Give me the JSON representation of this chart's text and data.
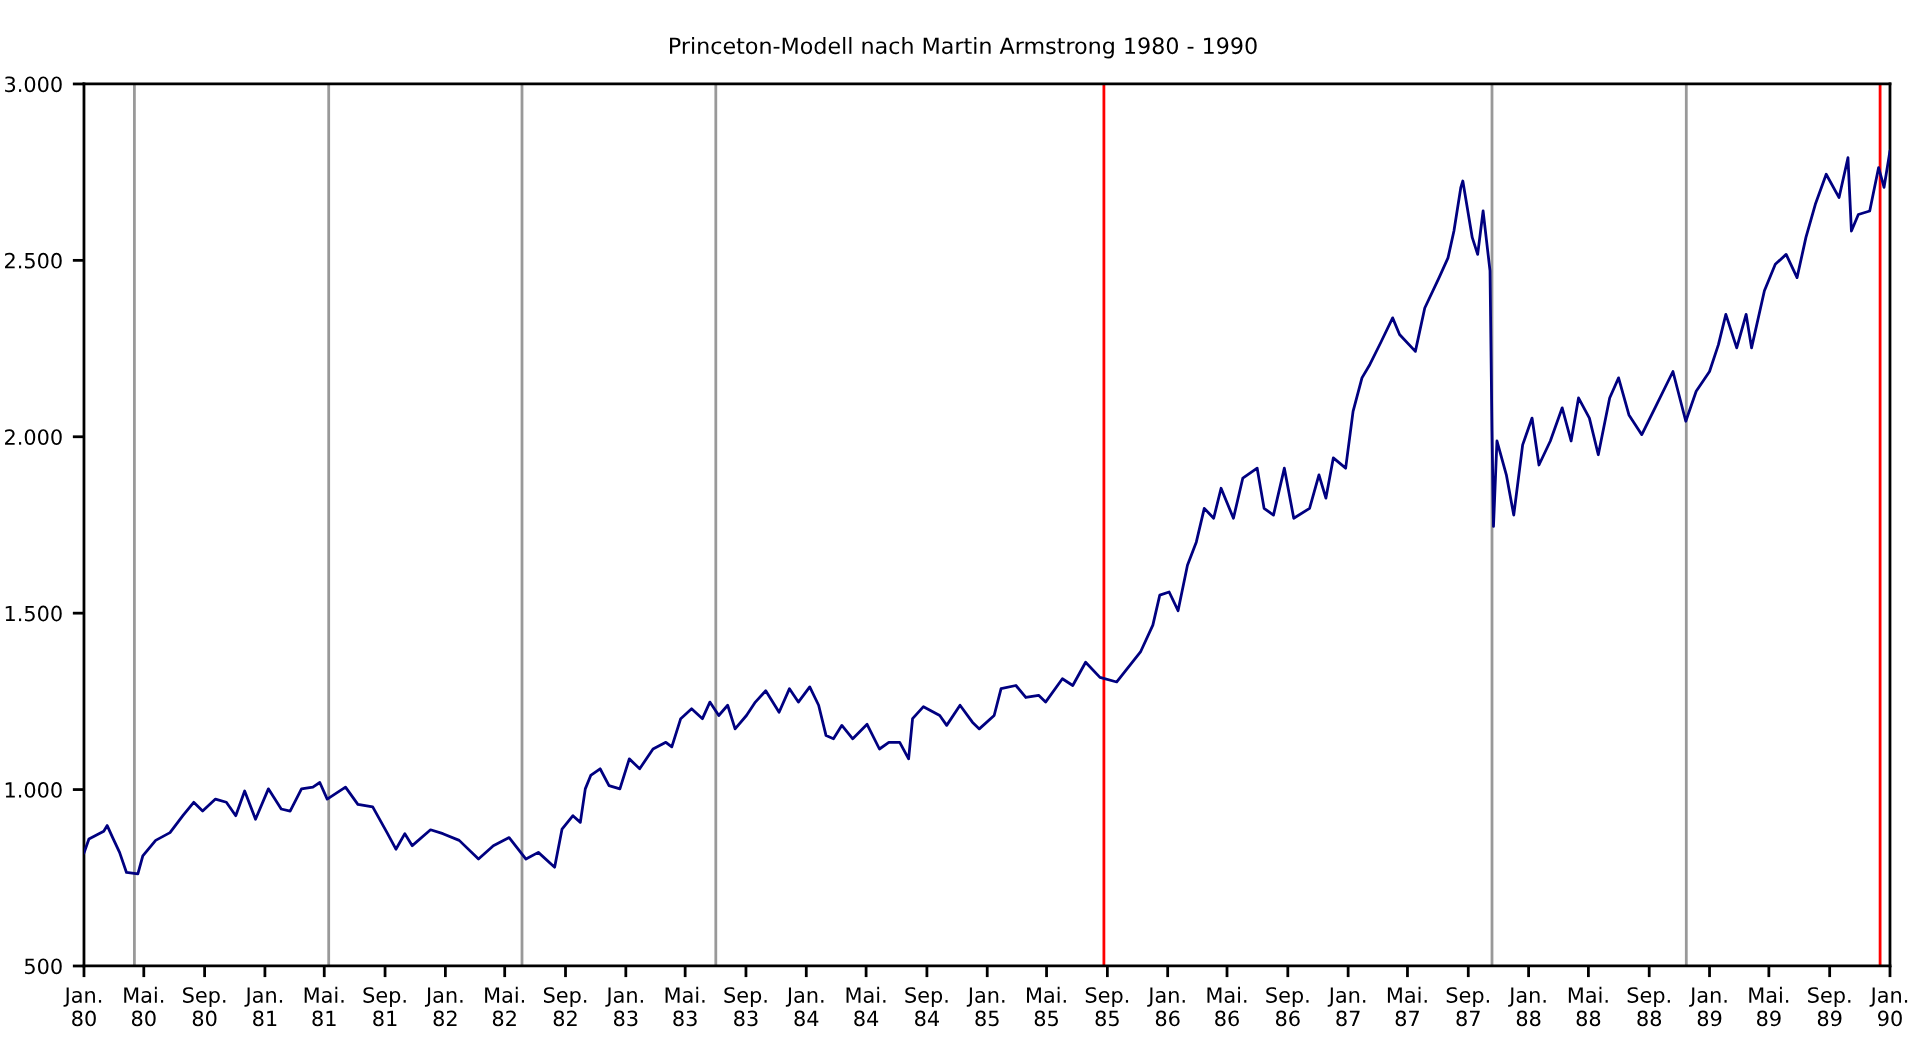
{
  "chart_data": {
    "type": "line",
    "title": "Princeton-Modell nach Martin Armstrong 1980 - 1990",
    "series": [
      {
        "color": "#000080",
        "x": [
          "1980-01-01",
          "1980-01-11",
          "1980-02-10",
          "1980-02-17",
          "1980-02-28",
          "1980-03-13",
          "1980-03-27",
          "1980-04-19",
          "1980-04-29",
          "1980-05-25",
          "1980-06-23",
          "1980-07-19",
          "1980-08-10",
          "1980-08-28",
          "1980-09-23",
          "1980-10-15",
          "1980-11-03",
          "1980-11-21",
          "1980-12-13",
          "1981-01-08",
          "1981-02-03",
          "1981-02-21",
          "1981-03-16",
          "1981-04-08",
          "1981-04-22",
          "1981-05-07",
          "1981-06-13",
          "1981-07-08",
          "1981-08-07",
          "1981-09-05",
          "1981-09-23",
          "1981-10-11",
          "1981-10-26",
          "1981-12-02",
          "1981-12-27",
          "1982-01-29",
          "1982-03-09",
          "1982-04-08",
          "1982-05-10",
          "1982-06-13",
          "1982-07-08",
          "1982-08-10",
          "1982-08-25",
          "1982-09-16",
          "1982-10-01",
          "1982-10-11",
          "1982-10-22",
          "1982-11-10",
          "1982-11-28",
          "1982-12-20",
          "1983-01-08",
          "1983-01-29",
          "1983-02-25",
          "1983-03-23",
          "1983-04-04",
          "1983-04-22",
          "1983-05-14",
          "1983-06-05",
          "1983-06-20",
          "1983-07-08",
          "1983-07-26",
          "1983-08-10",
          "1983-09-02",
          "1983-09-20",
          "1983-10-11",
          "1983-11-07",
          "1983-11-28",
          "1983-12-16",
          "1984-01-08",
          "1984-01-26",
          "1984-02-10",
          "1984-02-25",
          "1984-03-13",
          "1984-04-04",
          "1984-05-03",
          "1984-05-28",
          "1984-06-16",
          "1984-07-08",
          "1984-07-26",
          "1984-08-03",
          "1984-08-25",
          "1984-09-27",
          "1984-10-11",
          "1984-11-07",
          "1984-12-02",
          "1984-12-16",
          "1985-01-15",
          "1985-01-29",
          "1985-02-28",
          "1985-03-20",
          "1985-04-15",
          "1985-04-29",
          "1985-06-02",
          "1985-06-23",
          "1985-07-19",
          "1985-08-17",
          "1985-09-20",
          "1985-10-08",
          "1985-11-07",
          "1985-12-02",
          "1985-12-16",
          "1986-01-04",
          "1986-01-22",
          "1986-02-10",
          "1986-02-28",
          "1986-03-16",
          "1986-04-04",
          "1986-04-19",
          "1986-05-14",
          "1986-06-02",
          "1986-07-01",
          "1986-07-15",
          "1986-08-03",
          "1986-08-25",
          "1986-09-13",
          "1986-10-15",
          "1986-11-03",
          "1986-11-17",
          "1986-12-02",
          "1986-12-27",
          "1987-01-11",
          "1987-01-29",
          "1987-02-14",
          "1987-03-09",
          "1987-04-01",
          "1987-04-15",
          "1987-05-17",
          "1987-06-05",
          "1987-07-04",
          "1987-07-22",
          "1987-08-03",
          "1987-08-17",
          "1987-08-21",
          "1987-09-09",
          "1987-09-20",
          "1987-10-01",
          "1987-10-15",
          "1987-10-19",
          "1987-10-22",
          "1987-10-29",
          "1987-11-17",
          "1987-12-02",
          "1987-12-20",
          "1988-01-08",
          "1988-01-22",
          "1988-02-14",
          "1988-03-09",
          "1988-03-27",
          "1988-04-11",
          "1988-05-03",
          "1988-05-21",
          "1988-06-13",
          "1988-07-01",
          "1988-07-22",
          "1988-08-17",
          "1988-09-16",
          "1988-10-19",
          "1988-11-14",
          "1988-12-05",
          "1989-01-01",
          "1989-01-19",
          "1989-02-03",
          "1989-02-25",
          "1989-03-16",
          "1989-03-27",
          "1989-04-22",
          "1989-05-14",
          "1989-06-05",
          "1989-06-27",
          "1989-07-15",
          "1989-08-03",
          "1989-08-25",
          "1989-09-20",
          "1989-10-08",
          "1989-10-15",
          "1989-10-29",
          "1989-11-21",
          "1989-12-09",
          "1989-12-20",
          "1990-01-01"
        ],
        "values": [
          820,
          860,
          882,
          898,
          864,
          822,
          765,
          761,
          812,
          856,
          878,
          926,
          964,
          939,
          973,
          964,
          926,
          996,
          916,
          1002,
          945,
          939,
          1002,
          1007,
          1020,
          973,
          1007,
          958,
          951,
          878,
          831,
          875,
          841,
          886,
          875,
          856,
          803,
          841,
          864,
          803,
          822,
          780,
          888,
          926,
          907,
          1002,
          1040,
          1059,
          1011,
          1002,
          1087,
          1059,
          1115,
          1134,
          1121,
          1201,
          1229,
          1201,
          1248,
          1210,
          1239,
          1172,
          1210,
          1248,
          1280,
          1219,
          1286,
          1248,
          1291,
          1239,
          1153,
          1144,
          1182,
          1144,
          1185,
          1115,
          1134,
          1134,
          1087,
          1201,
          1235,
          1210,
          1182,
          1239,
          1191,
          1172,
          1210,
          1286,
          1295,
          1261,
          1267,
          1248,
          1314,
          1295,
          1361,
          1318,
          1305,
          1337,
          1390,
          1466,
          1551,
          1560,
          1507,
          1636,
          1702,
          1797,
          1769,
          1854,
          1769,
          1883,
          1911,
          1797,
          1778,
          1911,
          1769,
          1797,
          1892,
          1826,
          1940,
          1911,
          2072,
          2167,
          2205,
          2270,
          2337,
          2290,
          2242,
          2365,
          2451,
          2507,
          2583,
          2707,
          2725,
          2565,
          2517,
          2640,
          2470,
          2016,
          1746,
          1988,
          1892,
          1778,
          1977,
          2053,
          1920,
          1988,
          2082,
          1988,
          2110,
          2053,
          1949,
          2110,
          2167,
          2062,
          2006,
          2091,
          2185,
          2044,
          2129,
          2185,
          2261,
          2347,
          2252,
          2347,
          2252,
          2414,
          2489,
          2517,
          2451,
          2565,
          2659,
          2744,
          2678,
          2791,
          2583,
          2630,
          2640,
          2763,
          2707,
          2810
        ]
      }
    ],
    "xlim": [
      "1980-01-01",
      "1990-01-01"
    ],
    "xticks": [
      {
        "value": "1980-01",
        "label": "Jan.\n80"
      },
      {
        "value": "1980-05",
        "label": "Mai.\n80"
      },
      {
        "value": "1980-09",
        "label": "Sep.\n80"
      },
      {
        "value": "1981-01",
        "label": "Jan.\n81"
      },
      {
        "value": "1981-05",
        "label": "Mai.\n81"
      },
      {
        "value": "1981-09",
        "label": "Sep.\n81"
      },
      {
        "value": "1982-01",
        "label": "Jan.\n82"
      },
      {
        "value": "1982-05",
        "label": "Mai.\n82"
      },
      {
        "value": "1982-09",
        "label": "Sep.\n82"
      },
      {
        "value": "1983-01",
        "label": "Jan.\n83"
      },
      {
        "value": "1983-05",
        "label": "Mai.\n83"
      },
      {
        "value": "1983-09",
        "label": "Sep.\n83"
      },
      {
        "value": "1984-01",
        "label": "Jan.\n84"
      },
      {
        "value": "1984-05",
        "label": "Mai.\n84"
      },
      {
        "value": "1984-09",
        "label": "Sep.\n84"
      },
      {
        "value": "1985-01",
        "label": "Jan.\n85"
      },
      {
        "value": "1985-05",
        "label": "Mai.\n85"
      },
      {
        "value": "1985-09",
        "label": "Sep.\n85"
      },
      {
        "value": "1986-01",
        "label": "Jan.\n86"
      },
      {
        "value": "1986-05",
        "label": "Mai.\n86"
      },
      {
        "value": "1986-09",
        "label": "Sep.\n86"
      },
      {
        "value": "1987-01",
        "label": "Jan.\n87"
      },
      {
        "value": "1987-05",
        "label": "Mai.\n87"
      },
      {
        "value": "1987-09",
        "label": "Sep.\n87"
      },
      {
        "value": "1988-01",
        "label": "Jan.\n88"
      },
      {
        "value": "1988-05",
        "label": "Mai.\n88"
      },
      {
        "value": "1988-09",
        "label": "Sep.\n88"
      },
      {
        "value": "1989-01",
        "label": "Jan.\n89"
      },
      {
        "value": "1989-05",
        "label": "Mai.\n89"
      },
      {
        "value": "1989-09",
        "label": "Sep.\n89"
      },
      {
        "value": "1990-01",
        "label": "Jan.\n90"
      }
    ],
    "ylim": [
      500,
      3000
    ],
    "yticks": [
      500,
      {
        "value": 1000,
        "label": "1.000"
      },
      {
        "value": 1500,
        "label": "1.500"
      },
      {
        "value": 2000,
        "label": "2.000"
      },
      {
        "value": 2500,
        "label": "2.500"
      },
      {
        "value": 3000,
        "label": "3.000"
      }
    ],
    "ref_lines": [
      {
        "axis": "x",
        "value": "1980-04-12",
        "color": "#999999"
      },
      {
        "axis": "x",
        "value": "1981-05-10",
        "color": "#999999"
      },
      {
        "axis": "x",
        "value": "1982-06-05",
        "color": "#999999"
      },
      {
        "axis": "x",
        "value": "1983-07-02",
        "color": "#999999"
      },
      {
        "axis": "x",
        "value": "1985-08-25",
        "color": "#ff0000"
      },
      {
        "axis": "x",
        "value": "1987-10-19",
        "color": "#999999"
      },
      {
        "axis": "x",
        "value": "1988-11-15",
        "color": "#999999"
      },
      {
        "axis": "x",
        "value": "1989-12-12",
        "color": "#ff0000"
      }
    ],
    "grid": false,
    "legend": false
  }
}
